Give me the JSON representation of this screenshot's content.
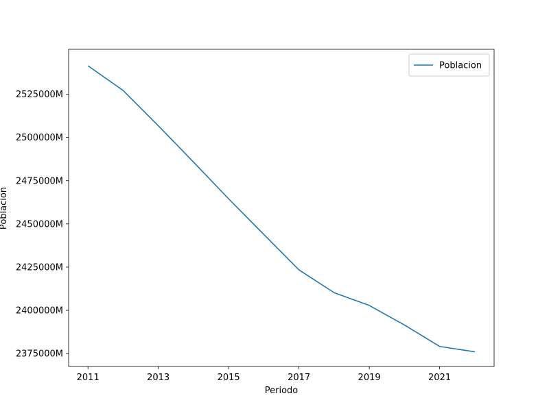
{
  "chart_data": {
    "type": "line",
    "title": "",
    "xlabel": "Periodo",
    "ylabel": "Poblacion",
    "x": [
      2011,
      2012,
      2013,
      2014,
      2015,
      2016,
      2017,
      2018,
      2019,
      2020,
      2021,
      2022
    ],
    "series": [
      {
        "name": "Poblacion",
        "color": "#1f77b4",
        "values": [
          2541500,
          2527200,
          2506800,
          2485800,
          2464500,
          2443900,
          2423400,
          2410200,
          2402800,
          2391500,
          2379100,
          2376000
        ]
      }
    ],
    "xlim": [
      2010.45,
      2022.55
    ],
    "ylim": [
      2367500,
      2551000
    ],
    "xticks": [
      {
        "value": 2011,
        "label": "2011"
      },
      {
        "value": 2013,
        "label": "2013"
      },
      {
        "value": 2015,
        "label": "2015"
      },
      {
        "value": 2017,
        "label": "2017"
      },
      {
        "value": 2019,
        "label": "2019"
      },
      {
        "value": 2021,
        "label": "2021"
      }
    ],
    "yticks": [
      {
        "value": 2375000,
        "label": "2375000M"
      },
      {
        "value": 2400000,
        "label": "2400000M"
      },
      {
        "value": 2425000,
        "label": "2425000M"
      },
      {
        "value": 2450000,
        "label": "2450000M"
      },
      {
        "value": 2475000,
        "label": "2475000M"
      },
      {
        "value": 2500000,
        "label": "2500000M"
      },
      {
        "value": 2525000,
        "label": "2525000M"
      }
    ],
    "grid": false,
    "legend_position": "top-right"
  }
}
